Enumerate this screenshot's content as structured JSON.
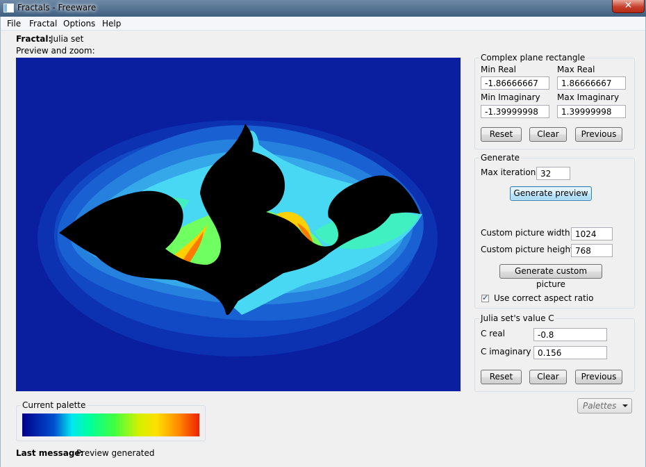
{
  "window": {
    "title": "Fractals - Freeware",
    "close_glyph": "✕"
  },
  "menu": [
    "File",
    "Fractal",
    "Options",
    "Help"
  ],
  "fractal": {
    "label": "Fractal:",
    "value": "Julia set"
  },
  "preview": {
    "label": "Preview and zoom:",
    "colors": [
      "#0a1ea0",
      "#0c32b2",
      "#1148c4",
      "#1960d2",
      "#2580de",
      "#35a8ea",
      "#48d8f4",
      "#40f0c0",
      "#70ff60",
      "#ffd000",
      "#ff7a00",
      "#000000"
    ]
  },
  "complex_plane": {
    "title": "Complex plane rectangle",
    "min_real_label": "Min Real",
    "min_real": "-1.86666667",
    "max_real_label": "Max Real",
    "max_real": "1.86666667",
    "min_imag_label": "Min Imaginary",
    "min_imag": "-1.39999998",
    "max_imag_label": "Max Imaginary",
    "max_imag": "1.39999998",
    "reset": "Reset",
    "clear": "Clear",
    "previous": "Previous"
  },
  "generate": {
    "title": "Generate",
    "max_iter_label": "Max iterations",
    "max_iter": "32",
    "preview_button": "Generate preview",
    "width_label": "Custom picture width:",
    "width": "1024",
    "height_label": "Custom picture height:",
    "height": "768",
    "custom_button": "Generate custom picture",
    "aspect_label": "Use correct aspect ratio",
    "aspect_checked": true,
    "check_glyph": "✓"
  },
  "julia": {
    "title": "Julia set's value C",
    "creal_label": "C real",
    "creal": "-0.8",
    "cimag_label": "C imaginary",
    "cimag": "0.156",
    "reset": "Reset",
    "clear": "Clear",
    "previous": "Previous"
  },
  "palette": {
    "title": "Current palette",
    "dropdown": "Palettes"
  },
  "status": {
    "label": "Last message:",
    "value": "Preview generated"
  }
}
